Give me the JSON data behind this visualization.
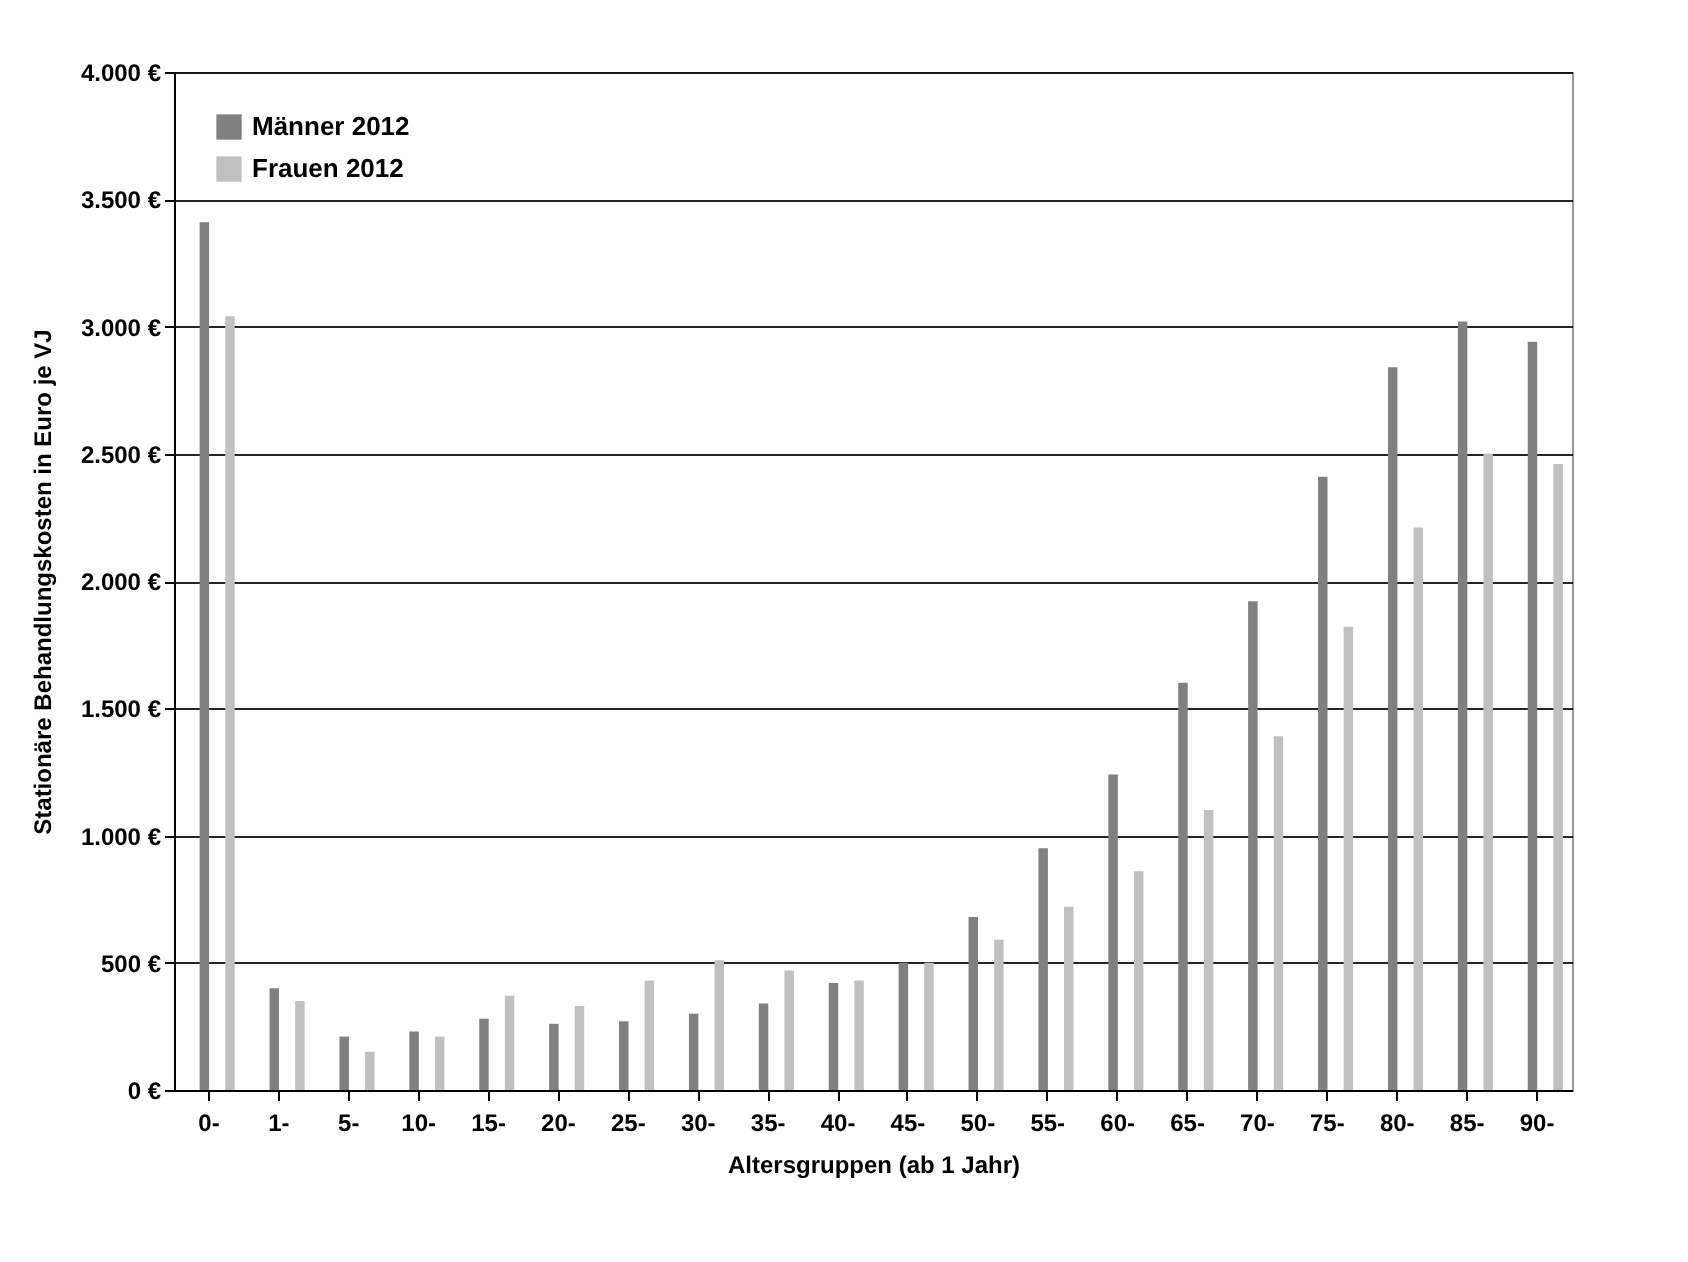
{
  "chart_data": {
    "type": "bar",
    "xlabel": "Altersgruppen (ab 1 Jahr)",
    "ylabel": "Stationäre Behandlungskosten in Euro je VJ",
    "categories": [
      "0-",
      "1-",
      "5-",
      "10-",
      "15-",
      "20-",
      "25-",
      "30-",
      "35-",
      "40-",
      "45-",
      "50-",
      "55-",
      "60-",
      "65-",
      "70-",
      "75-",
      "80-",
      "85-",
      "90-"
    ],
    "series": [
      {
        "name": "Männer 2012",
        "color": "#808080",
        "values": [
          3410,
          400,
          210,
          230,
          280,
          260,
          270,
          300,
          340,
          420,
          500,
          680,
          950,
          1240,
          1600,
          1920,
          2410,
          2840,
          3020,
          2940
        ]
      },
      {
        "name": "Frauen 2012",
        "color": "#c0c0c0",
        "values": [
          3040,
          350,
          150,
          210,
          370,
          330,
          430,
          510,
          470,
          430,
          500,
          590,
          720,
          860,
          1100,
          1390,
          1820,
          2210,
          2500,
          2460
        ]
      }
    ],
    "ylim": [
      0,
      4000
    ],
    "yticks": [
      {
        "value": 0,
        "label": "0 €"
      },
      {
        "value": 500,
        "label": "500 €"
      },
      {
        "value": 1000,
        "label": "1.000 €"
      },
      {
        "value": 1500,
        "label": "1.500 €"
      },
      {
        "value": 2000,
        "label": "2.000 €"
      },
      {
        "value": 2500,
        "label": "2.500 €"
      },
      {
        "value": 3000,
        "label": "3.000 €"
      },
      {
        "value": 3500,
        "label": "3.500 €"
      },
      {
        "value": 4000,
        "label": "4.000 €"
      }
    ],
    "grid": "y",
    "legend": "top left"
  }
}
